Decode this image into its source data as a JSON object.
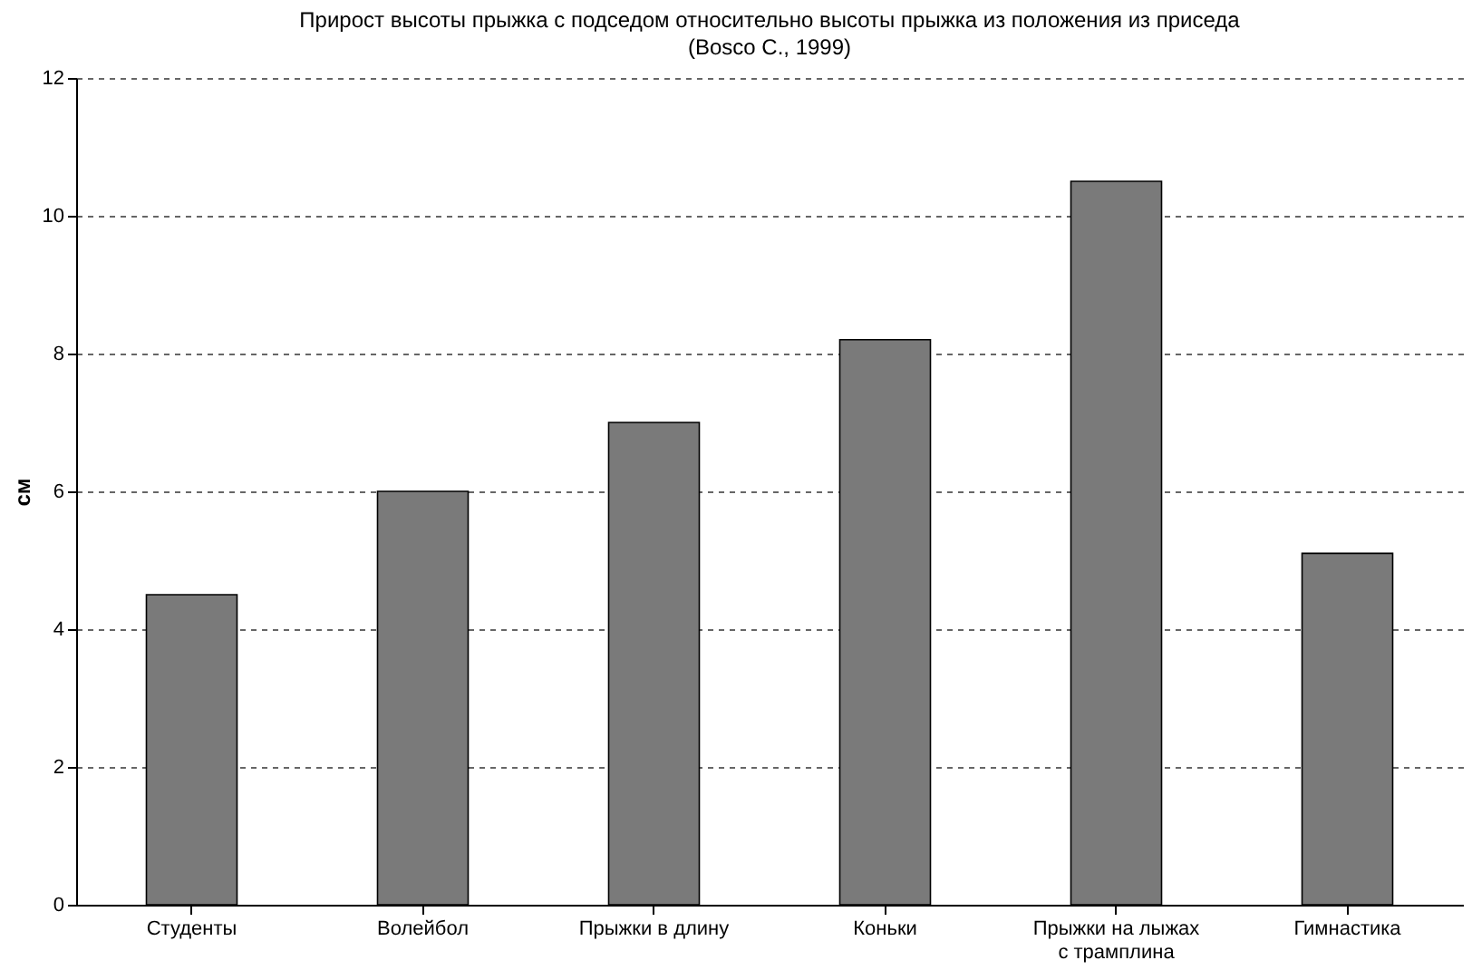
{
  "chart_data": {
    "type": "bar",
    "title": "Прирост высоты прыжка с подседом относительно высоты прыжка из положения  из приседа",
    "subtitle": "(Bosco C., 1999)",
    "ylabel": "см",
    "categories": [
      "Студенты",
      "Волейбол",
      "Прыжки в длину",
      "Коньки",
      "Прыжки на лыжах с трамплина",
      "Гимнастика"
    ],
    "values": [
      4.5,
      6.0,
      7.0,
      8.2,
      10.5,
      5.1
    ],
    "color": "#7a7a7a",
    "ylim": [
      0,
      12
    ],
    "yticks": [
      0,
      2,
      4,
      6,
      8,
      10,
      12
    ],
    "grid": "y"
  }
}
